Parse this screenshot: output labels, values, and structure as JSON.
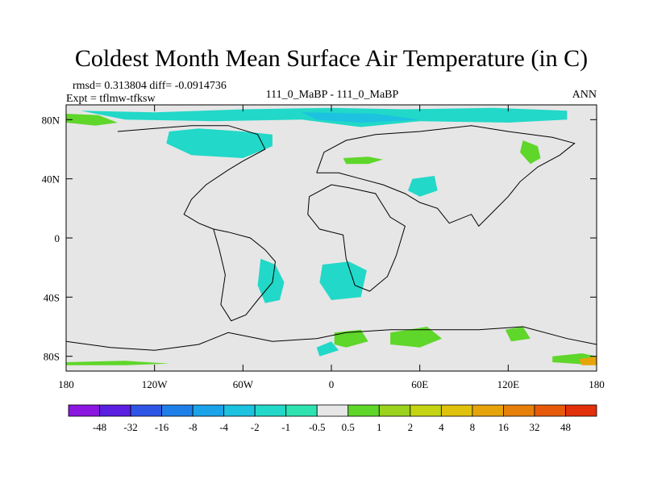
{
  "chart_data": {
    "type": "heatmap",
    "title": "Coldest Month Mean Surface Air Temperature (in C)",
    "stats_line": "rmsd= 0.313804 diff= -0.0914736",
    "left_subtitle": "Expt = tflmw-tfksw",
    "center_subtitle": "111_0_MaBP - 111_0_MaBP",
    "right_subtitle": "ANN",
    "xlim": [
      -180,
      180
    ],
    "ylim": [
      -90,
      90
    ],
    "x_ticks": [
      {
        "value": -180,
        "label": "180"
      },
      {
        "value": -120,
        "label": "120W"
      },
      {
        "value": -60,
        "label": "60W"
      },
      {
        "value": 0,
        "label": "0"
      },
      {
        "value": 60,
        "label": "60E"
      },
      {
        "value": 120,
        "label": "120E"
      },
      {
        "value": 180,
        "label": "180"
      }
    ],
    "y_ticks": [
      {
        "value": 80,
        "label": "80N"
      },
      {
        "value": 40,
        "label": "40N"
      },
      {
        "value": 0,
        "label": "0"
      },
      {
        "value": -40,
        "label": "40S"
      },
      {
        "value": -80,
        "label": "80S"
      }
    ],
    "colorbar": {
      "colors": [
        "#8a16e0",
        "#5a1fe0",
        "#2f55e6",
        "#1f7fe8",
        "#1aa3e8",
        "#1cc2e0",
        "#22d8c8",
        "#2ee3b0",
        "#e6e6e6",
        "#5fd62a",
        "#9ad21e",
        "#c4d412",
        "#e0c20c",
        "#e6a40a",
        "#e6800a",
        "#e65a0a",
        "#e2300a"
      ],
      "labels": [
        "-48",
        "-32",
        "-16",
        "-8",
        "-4",
        "-2",
        "-1",
        "-0.5",
        "0.5",
        "1",
        "2",
        "4",
        "8",
        "16",
        "32",
        "48"
      ]
    },
    "regions": [
      {
        "name": "north-polar-cyan-band",
        "color": "#22d8c8",
        "poly": [
          [
            -170,
            86
          ],
          [
            -120,
            85
          ],
          [
            -60,
            87
          ],
          [
            0,
            88
          ],
          [
            50,
            87
          ],
          [
            110,
            88
          ],
          [
            160,
            86
          ],
          [
            160,
            80
          ],
          [
            120,
            78
          ],
          [
            60,
            79
          ],
          [
            20,
            75
          ],
          [
            -20,
            80
          ],
          [
            -80,
            79
          ],
          [
            -140,
            80
          ]
        ]
      },
      {
        "name": "north-polar-deep-cyan",
        "color": "#1cc2e0",
        "poly": [
          [
            -20,
            85
          ],
          [
            30,
            84
          ],
          [
            60,
            80
          ],
          [
            20,
            78
          ],
          [
            -10,
            80
          ]
        ]
      },
      {
        "name": "north-america-cyan",
        "color": "#22d8c8",
        "poly": [
          [
            -110,
            72
          ],
          [
            -90,
            74
          ],
          [
            -60,
            72
          ],
          [
            -40,
            70
          ],
          [
            -40,
            62
          ],
          [
            -60,
            54
          ],
          [
            -95,
            56
          ],
          [
            -112,
            64
          ]
        ]
      },
      {
        "name": "north-pacific-green",
        "color": "#5fd62a",
        "poly": [
          [
            -180,
            84
          ],
          [
            -158,
            83
          ],
          [
            -145,
            78
          ],
          [
            -160,
            76
          ],
          [
            -180,
            78
          ]
        ]
      },
      {
        "name": "east-asia-green",
        "color": "#5fd62a",
        "poly": [
          [
            130,
            66
          ],
          [
            140,
            62
          ],
          [
            142,
            54
          ],
          [
            135,
            50
          ],
          [
            128,
            58
          ]
        ]
      },
      {
        "name": "central-green-strip",
        "color": "#5fd62a",
        "poly": [
          [
            8,
            54
          ],
          [
            25,
            55
          ],
          [
            35,
            53
          ],
          [
            25,
            50
          ],
          [
            10,
            50
          ]
        ]
      },
      {
        "name": "asia-cyan-patch",
        "color": "#22d8c8",
        "poly": [
          [
            55,
            40
          ],
          [
            70,
            42
          ],
          [
            72,
            32
          ],
          [
            60,
            28
          ],
          [
            52,
            32
          ]
        ]
      },
      {
        "name": "south-america-cyan",
        "color": "#22d8c8",
        "poly": [
          [
            -48,
            -14
          ],
          [
            -38,
            -18
          ],
          [
            -32,
            -30
          ],
          [
            -35,
            -42
          ],
          [
            -45,
            -44
          ],
          [
            -50,
            -32
          ]
        ]
      },
      {
        "name": "africa-cyan",
        "color": "#22d8c8",
        "poly": [
          [
            -6,
            -18
          ],
          [
            12,
            -16
          ],
          [
            24,
            -22
          ],
          [
            20,
            -40
          ],
          [
            0,
            -42
          ],
          [
            -8,
            -30
          ]
        ]
      },
      {
        "name": "antarctic-green-east",
        "color": "#5fd62a",
        "poly": [
          [
            40,
            -64
          ],
          [
            65,
            -60
          ],
          [
            75,
            -68
          ],
          [
            60,
            -74
          ],
          [
            40,
            -72
          ]
        ]
      },
      {
        "name": "antarctic-green-west",
        "color": "#5fd62a",
        "poly": [
          [
            2,
            -64
          ],
          [
            20,
            -62
          ],
          [
            25,
            -70
          ],
          [
            10,
            -74
          ],
          [
            2,
            -72
          ]
        ]
      },
      {
        "name": "antarctic-green-far-east",
        "color": "#5fd62a",
        "poly": [
          [
            118,
            -62
          ],
          [
            130,
            -60
          ],
          [
            135,
            -68
          ],
          [
            122,
            -70
          ]
        ]
      },
      {
        "name": "antarctic-cyan",
        "color": "#22d8c8",
        "poly": [
          [
            -10,
            -74
          ],
          [
            0,
            -70
          ],
          [
            5,
            -76
          ],
          [
            -8,
            -80
          ]
        ]
      },
      {
        "name": "south-pole-green-east",
        "color": "#5fd62a",
        "poly": [
          [
            150,
            -80
          ],
          [
            170,
            -78
          ],
          [
            180,
            -80
          ],
          [
            180,
            -86
          ],
          [
            150,
            -84
          ]
        ]
      },
      {
        "name": "south-pole-orange",
        "color": "#e6a40a",
        "poly": [
          [
            168,
            -82
          ],
          [
            180,
            -80
          ],
          [
            180,
            -86
          ],
          [
            170,
            -86
          ]
        ]
      },
      {
        "name": "south-pole-green-west",
        "color": "#5fd62a",
        "poly": [
          [
            -180,
            -84
          ],
          [
            -140,
            -83
          ],
          [
            -110,
            -85
          ],
          [
            -140,
            -86
          ],
          [
            -180,
            -86
          ]
        ]
      }
    ],
    "coastlines": [
      [
        [
          -145,
          72
        ],
        [
          -120,
          74
        ],
        [
          -95,
          76
        ],
        [
          -70,
          76
        ],
        [
          -50,
          70
        ],
        [
          -45,
          60
        ],
        [
          -60,
          52
        ],
        [
          -70,
          46
        ],
        [
          -85,
          36
        ],
        [
          -95,
          26
        ],
        [
          -100,
          16
        ],
        [
          -90,
          10
        ],
        [
          -80,
          6
        ]
      ],
      [
        [
          -80,
          6
        ],
        [
          -70,
          4
        ],
        [
          -55,
          0
        ],
        [
          -45,
          -8
        ],
        [
          -38,
          -16
        ],
        [
          -40,
          -30
        ],
        [
          -50,
          -42
        ],
        [
          -58,
          -52
        ],
        [
          -68,
          -56
        ],
        [
          -75,
          -45
        ],
        [
          -72,
          -25
        ],
        [
          -76,
          -8
        ],
        [
          -80,
          6
        ]
      ],
      [
        [
          -15,
          28
        ],
        [
          0,
          36
        ],
        [
          12,
          34
        ],
        [
          30,
          30
        ],
        [
          40,
          14
        ],
        [
          50,
          8
        ],
        [
          44,
          -12
        ],
        [
          38,
          -26
        ],
        [
          26,
          -36
        ],
        [
          16,
          -32
        ],
        [
          10,
          -14
        ],
        [
          8,
          2
        ],
        [
          -8,
          6
        ],
        [
          -16,
          16
        ],
        [
          -15,
          28
        ]
      ],
      [
        [
          -10,
          44
        ],
        [
          -5,
          58
        ],
        [
          10,
          66
        ],
        [
          30,
          70
        ],
        [
          60,
          72
        ],
        [
          95,
          76
        ],
        [
          120,
          72
        ],
        [
          150,
          68
        ],
        [
          165,
          64
        ],
        [
          155,
          56
        ],
        [
          140,
          48
        ],
        [
          128,
          38
        ],
        [
          120,
          28
        ],
        [
          110,
          18
        ],
        [
          100,
          8
        ],
        [
          95,
          16
        ],
        [
          80,
          10
        ],
        [
          72,
          20
        ],
        [
          60,
          24
        ],
        [
          50,
          30
        ],
        [
          35,
          36
        ],
        [
          20,
          40
        ],
        [
          5,
          44
        ],
        [
          -10,
          44
        ]
      ],
      [
        [
          -180,
          -70
        ],
        [
          -150,
          -74
        ],
        [
          -120,
          -76
        ],
        [
          -90,
          -72
        ],
        [
          -70,
          -64
        ],
        [
          -40,
          -70
        ],
        [
          -10,
          -68
        ],
        [
          10,
          -64
        ],
        [
          40,
          -62
        ],
        [
          70,
          -62
        ],
        [
          100,
          -62
        ],
        [
          130,
          -60
        ],
        [
          160,
          -68
        ],
        [
          180,
          -72
        ]
      ]
    ]
  }
}
